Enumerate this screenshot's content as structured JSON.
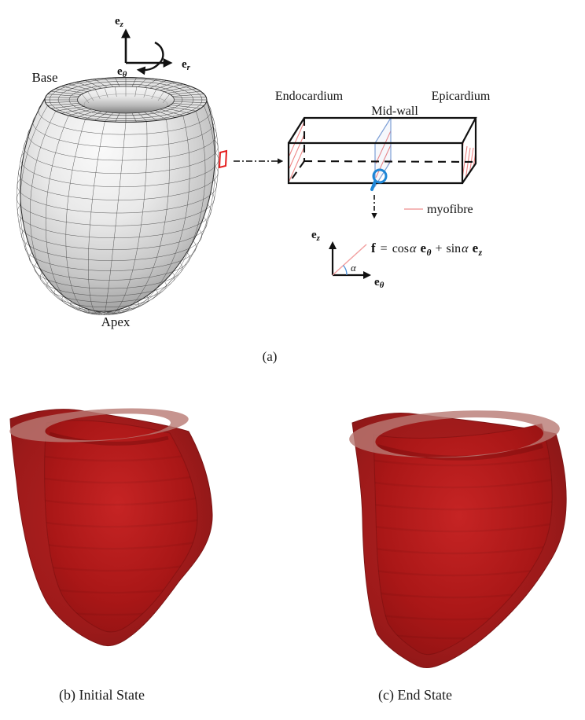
{
  "figure": {
    "panel_a": {
      "caption": "(a)",
      "mesh_labels": {
        "base": "Base",
        "apex": "Apex"
      },
      "axes": {
        "e": "e",
        "z": "z",
        "r": "r",
        "theta": "θ"
      },
      "box_labels": {
        "endocardium": "Endocardium",
        "midwall": "Mid-wall",
        "epicardium": "Epicardium"
      },
      "legend": {
        "myofibre": "myofibre"
      },
      "equation": {
        "f": "f",
        "equals": "=",
        "cos": "cos",
        "alpha": "α",
        "e": "e",
        "theta": "θ",
        "plus": "+",
        "sin": "sin",
        "z": "z"
      },
      "colors": {
        "myofibre_line": "#f2a0a0",
        "hatch_red": "#ee8585",
        "midwall_plane_blue": "#7d9fd6",
        "magnifier_blue": "#1e86d6",
        "element_red": "#e41b1b",
        "line_black": "#111111"
      }
    },
    "panel_b": {
      "caption": "(b) Initial State"
    },
    "panel_c": {
      "caption": "(c) End State"
    },
    "heart_colors": {
      "wall_light": "#b51a1a",
      "wall": "#9a1313",
      "wall_edge": "#7a0e0e",
      "cavity_light": "#c62424",
      "cavity": "#aa1717",
      "cavity_deep": "#861111",
      "rim_band": "#b97a74",
      "rim_shadow": "#640808"
    },
    "mesh_colors": {
      "surface_light": "#fafafa",
      "surface_dark": "#8d8d8d",
      "line": "#383838"
    }
  }
}
